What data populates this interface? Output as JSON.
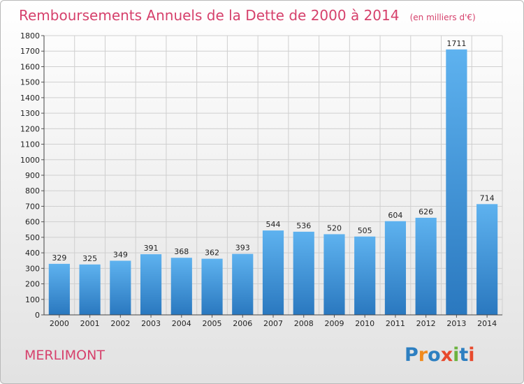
{
  "chart_data": {
    "type": "bar",
    "title": "Remboursements Annuels de la Dette de 2000 à 2014",
    "unit": "(en milliers d'€)",
    "categories": [
      "2000",
      "2001",
      "2002",
      "2003",
      "2004",
      "2005",
      "2006",
      "2007",
      "2008",
      "2009",
      "2010",
      "2011",
      "2012",
      "2013",
      "2014"
    ],
    "values": [
      329,
      325,
      349,
      391,
      368,
      362,
      393,
      544,
      536,
      520,
      505,
      604,
      626,
      1711,
      714
    ],
    "ylim": [
      0,
      1800
    ],
    "yticks": [
      0,
      100,
      200,
      300,
      400,
      500,
      600,
      700,
      800,
      900,
      1000,
      1100,
      1200,
      1300,
      1400,
      1500,
      1600,
      1700,
      1800
    ],
    "grid": true,
    "bar_color": "#3a8fd8",
    "title_color": "#d6416c"
  },
  "location": "MERLIMONT",
  "logo": {
    "letters": [
      "P",
      "r",
      "o",
      "x",
      "i",
      "t",
      "i"
    ],
    "colors": [
      "#2d7fc1",
      "#f18b1e",
      "#2d7fc1",
      "#e84a2d",
      "#6cb33f",
      "#2d7fc1",
      "#e84a2d"
    ]
  }
}
